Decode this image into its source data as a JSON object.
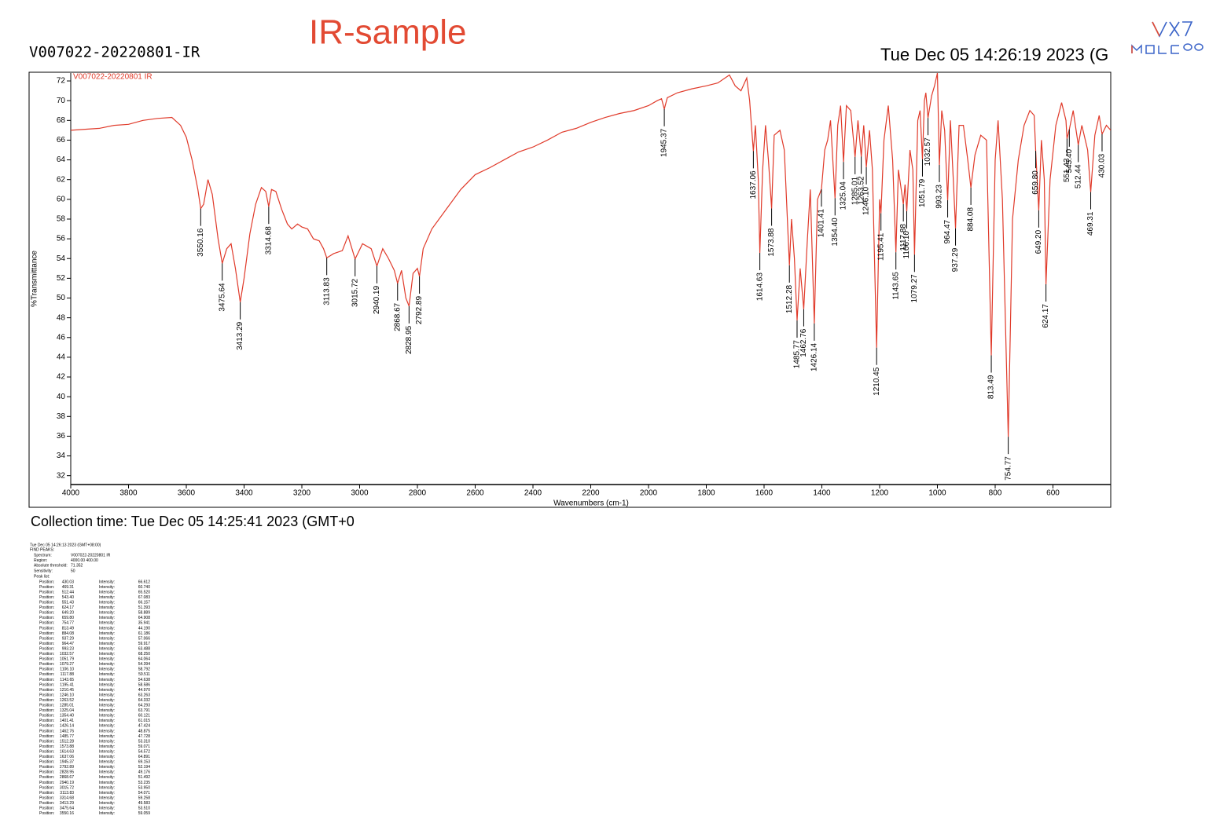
{
  "header": {
    "sample_id": "V007022-20220801-IR",
    "title": "IR-sample",
    "print_time": "Tue Dec 05 14:26:19 2023 (G"
  },
  "chart_data": {
    "type": "line",
    "legend_label": "V007022-20220801 IR",
    "xlabel": "Wavenumbers (cm-1)",
    "ylabel": "%Transmittance",
    "xlim": [
      4000,
      400
    ],
    "ylim": [
      31.1,
      72.8
    ],
    "xticks": [
      4000,
      3800,
      3600,
      3400,
      3200,
      3000,
      2800,
      2600,
      2400,
      2200,
      2000,
      1800,
      1600,
      1400,
      1200,
      1000,
      800,
      600
    ],
    "yticks": [
      32,
      34,
      36,
      38,
      40,
      42,
      44,
      46,
      48,
      50,
      52,
      54,
      56,
      58,
      60,
      62,
      64,
      66,
      68,
      70,
      72
    ],
    "series": [
      {
        "name": "V007022-20220801 IR",
        "color": "#e03a2a",
        "x": [
          4000,
          3900,
          3850,
          3800,
          3750,
          3700,
          3650,
          3620,
          3600,
          3580,
          3560,
          3550.16,
          3540,
          3525,
          3510,
          3490,
          3475.64,
          3460,
          3445,
          3430,
          3413.29,
          3400,
          3380,
          3360,
          3340,
          3325,
          3314.68,
          3305,
          3290,
          3270,
          3250,
          3235,
          3215,
          3200,
          3180,
          3160,
          3140,
          3125,
          3113.83,
          3090,
          3060,
          3040,
          3015.72,
          2990,
          2960,
          2940.19,
          2920,
          2900,
          2880,
          2868.67,
          2855,
          2840,
          2828.95,
          2815,
          2800,
          2792.89,
          2780,
          2750,
          2700,
          2650,
          2600,
          2550,
          2500,
          2450,
          2400,
          2350,
          2300,
          2250,
          2200,
          2150,
          2100,
          2050,
          2000,
          1970,
          1955,
          1945.37,
          1935,
          1900,
          1850,
          1800,
          1760,
          1720,
          1700,
          1680,
          1660,
          1650,
          1640,
          1637.06,
          1630,
          1620,
          1614.63,
          1605,
          1595,
          1585,
          1573.88,
          1565,
          1545,
          1530,
          1512.28,
          1505,
          1495,
          1485.77,
          1475,
          1462.76,
          1450,
          1440,
          1426.14,
          1415,
          1401.41,
          1390,
          1380,
          1370,
          1354.4,
          1345,
          1335,
          1325.04,
          1315,
          1300,
          1285.01,
          1275,
          1263.52,
          1255,
          1246.1,
          1235,
          1225,
          1210.45,
          1200,
          1195.41,
          1185,
          1170,
          1155,
          1143.65,
          1135,
          1117.88,
          1112,
          1106.1,
          1095,
          1085,
          1079.27,
          1068,
          1060,
          1051.79,
          1045,
          1040,
          1032.57,
          1020,
          1010,
          1000,
          993.23,
          985,
          975,
          964.47,
          955,
          945,
          937.29,
          925,
          910,
          895,
          884.08,
          870,
          850,
          830,
          813.49,
          800,
          790,
          775,
          754.77,
          740,
          720,
          700,
          680,
          665,
          659.8,
          649.2,
          640,
          630,
          624.17,
          610,
          590,
          570,
          555,
          551.43,
          543.4,
          530,
          512.44,
          500,
          480,
          469.31,
          455,
          440,
          430.03,
          415,
          400
        ],
        "values": [
          67.0,
          67.2,
          67.5,
          67.6,
          68.0,
          68.2,
          68.3,
          67.5,
          66.3,
          64.0,
          61.0,
          59.06,
          59.5,
          62.0,
          60.5,
          56.0,
          53.51,
          55.0,
          55.5,
          53.0,
          49.58,
          52.0,
          56.5,
          59.5,
          61.2,
          60.8,
          59.26,
          61.0,
          60.8,
          59.0,
          57.5,
          57.0,
          57.5,
          57.2,
          57.0,
          56.0,
          55.8,
          55.0,
          54.07,
          54.5,
          54.8,
          56.3,
          53.95,
          55.5,
          55.0,
          53.24,
          55.0,
          54.0,
          52.8,
          51.49,
          52.8,
          50.0,
          49.18,
          52.5,
          53.0,
          52.19,
          55.0,
          57.0,
          59.0,
          61.0,
          62.5,
          63.2,
          64.0,
          64.8,
          65.3,
          66.0,
          66.8,
          67.2,
          67.8,
          68.3,
          68.7,
          69.0,
          69.5,
          70.0,
          70.2,
          69.15,
          70.3,
          70.8,
          71.2,
          71.5,
          71.8,
          72.6,
          71.5,
          71.0,
          72.3,
          70.0,
          66.0,
          64.89,
          67.5,
          62.0,
          54.57,
          63.0,
          67.5,
          64.0,
          59.07,
          66.5,
          67.0,
          65.0,
          53.31,
          58.0,
          54.0,
          47.73,
          53.0,
          48.88,
          56.0,
          61.0,
          47.42,
          60.0,
          61.02,
          65.0,
          66.0,
          68.0,
          60.12,
          67.5,
          69.5,
          63.79,
          69.5,
          69.0,
          64.29,
          68.0,
          64.33,
          67.5,
          63.26,
          67.0,
          63.0,
          44.97,
          60.0,
          58.59,
          66.0,
          69.5,
          64.0,
          54.64,
          63.0,
          59.51,
          61.5,
          58.79,
          65.0,
          63.0,
          54.39,
          68.0,
          69.0,
          64.06,
          70.0,
          70.8,
          68.25,
          70.5,
          71.5,
          72.8,
          63.49,
          69.0,
          67.0,
          59.92,
          68.0,
          62.0,
          57.07,
          67.5,
          67.5,
          64.0,
          61.19,
          64.5,
          66.5,
          66.0,
          44.19,
          64.0,
          68.0,
          60.0,
          35.94,
          58.0,
          64.0,
          67.5,
          69.0,
          68.5,
          64.91,
          58.89,
          66.0,
          62.0,
          51.39,
          62.0,
          67.5,
          69.8,
          68.0,
          66.16,
          67.08,
          69.0,
          65.52,
          67.5,
          65.0,
          60.74,
          66.5,
          68.5,
          66.61,
          67.5,
          67.0
        ]
      }
    ]
  },
  "collection_time": "Collection time: Tue Dec 05 14:25:41 2023 (GMT+0",
  "report": {
    "timestamp": "Tue Dec 05 14:26:13 2023 (GMT+08:00)",
    "heading": "FIND PEAKS:",
    "fields": [
      {
        "label": "Spectrum:",
        "value": "V007022-20220801 IR"
      },
      {
        "label": "Region:",
        "value": "4000.00    400.00"
      },
      {
        "label": "Absolute threshold:",
        "value": "71.352"
      },
      {
        "label": "Sensitivity:",
        "value": "50"
      }
    ],
    "peak_list_heading": "Peak list:",
    "position_label": "Position:",
    "intensity_label": "Intensity:",
    "positions": [
      430.03,
      469.31,
      512.44,
      543.4,
      551.43,
      624.17,
      649.2,
      659.8,
      754.77,
      813.49,
      884.08,
      937.29,
      964.47,
      993.23,
      1032.57,
      1051.79,
      1079.27,
      1106.1,
      1117.88,
      1143.65,
      1195.41,
      1210.45,
      1246.1,
      1263.52,
      1285.01,
      1325.04,
      1354.4,
      1401.41,
      1426.14,
      1462.76,
      1485.77,
      1512.28,
      1573.88,
      1614.63,
      1637.06,
      1945.37,
      2792.89,
      2828.95,
      2868.67,
      2940.19,
      3015.72,
      3113.83,
      3314.68,
      3413.29,
      3475.64,
      3550.16
    ],
    "position_labels": [
      "430.03",
      "469.31",
      "512.44",
      "543.40",
      "551.43",
      "624.17",
      "649.20",
      "659.80",
      "754.77",
      "813.49",
      "884.08",
      "937.29",
      "964.47",
      "993.23",
      "1032.57",
      "1051.79",
      "1079.27",
      "1106.10",
      "1117.88",
      "1143.65",
      "1195.41",
      "1210.45",
      "1246.10",
      "1263.52",
      "1285.01",
      "1325.04",
      "1354.40",
      "1401.41",
      "1426.14",
      "1462.76",
      "1485.77",
      "1512.28",
      "1573.88",
      "1614.63",
      "1637.06",
      "1945.37",
      "2792.89",
      "2828.95",
      "2868.67",
      "2940.19",
      "3015.72",
      "3113.83",
      "3314.68",
      "3413.29",
      "3475.64",
      "3550.16"
    ],
    "intensities": [
      66.612,
      60.74,
      65.52,
      67.083,
      66.157,
      51.393,
      58.889,
      64.908,
      35.941,
      44.19,
      61.186,
      57.066,
      59.917,
      63.488,
      68.25,
      64.064,
      54.394,
      58.792,
      59.511,
      54.638,
      58.586,
      44.97,
      63.263,
      64.332,
      64.293,
      63.791,
      60.121,
      61.015,
      47.424,
      48.875,
      47.728,
      53.31,
      59.071,
      54.572,
      64.891,
      69.153,
      52.194,
      49.176,
      51.492,
      53.235,
      53.95,
      54.071,
      59.258,
      49.583,
      53.51,
      59.059
    ],
    "intensity_labels": [
      "66.612",
      "60.740",
      "65.520",
      "67.083",
      "66.157",
      "51.393",
      "58.889",
      "64.908",
      "35.941",
      "44.190",
      "61.186",
      "57.066",
      "59.917",
      "63.488",
      "68.250",
      "64.064",
      "54.394",
      "58.792",
      "59.511",
      "54.638",
      "58.586",
      "44.970",
      "63.263",
      "64.332",
      "64.293",
      "63.791",
      "60.121",
      "61.015",
      "47.424",
      "48.875",
      "47.728",
      "53.310",
      "59.071",
      "54.572",
      "64.891",
      "69.153",
      "52.194",
      "49.176",
      "51.492",
      "53.235",
      "53.950",
      "54.071",
      "59.258",
      "49.583",
      "53.510",
      "59.059"
    ]
  }
}
